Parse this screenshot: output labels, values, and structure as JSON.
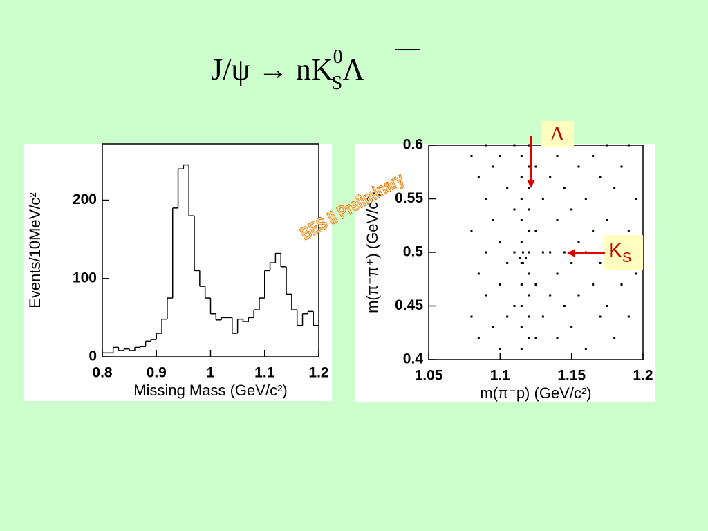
{
  "title": {
    "main": "J/ψ → nK",
    "sub": "S",
    "sup": "0",
    "tail": "Λ"
  },
  "watermark": "BES II Preliminary",
  "annotations": [
    {
      "main": "Λ"
    },
    {
      "main": "K",
      "sub": "S"
    }
  ],
  "chart_data": [
    {
      "type": "histogram",
      "xlabel": "Missing Mass (GeV/c²)",
      "ylabel": "Events/10MeV/c²",
      "bins": [
        0.8,
        0.81,
        0.82,
        0.83,
        0.84,
        0.85,
        0.86,
        0.87,
        0.88,
        0.89,
        0.9,
        0.91,
        0.92,
        0.93,
        0.94,
        0.95,
        0.96,
        0.97,
        0.98,
        0.99,
        1.0,
        1.01,
        1.02,
        1.03,
        1.04,
        1.05,
        1.06,
        1.07,
        1.08,
        1.09,
        1.1,
        1.11,
        1.12,
        1.13,
        1.14,
        1.15,
        1.16,
        1.17,
        1.18,
        1.19,
        1.2
      ],
      "values": [
        5,
        5,
        12,
        8,
        10,
        8,
        12,
        13,
        20,
        22,
        30,
        48,
        75,
        190,
        240,
        245,
        180,
        110,
        90,
        75,
        55,
        47,
        50,
        50,
        30,
        48,
        45,
        50,
        60,
        75,
        110,
        120,
        132,
        115,
        80,
        60,
        40,
        55,
        58,
        40
      ],
      "color": "#000000",
      "xlim": [
        0.8,
        1.2
      ],
      "xticks": [
        0.8,
        0.9,
        1,
        1.1,
        1.2
      ],
      "ylim": [
        0,
        272
      ],
      "yticks": [
        0,
        100,
        200
      ]
    },
    {
      "type": "scatter",
      "xlabel": "m(π⁻p)  (GeV/c²)",
      "ylabel": "m(π⁻π⁺)  (GeV/c²)",
      "x": [
        1.115,
        1.115,
        1.115,
        1.115,
        1.115,
        1.115,
        1.115,
        1.115,
        1.115,
        1.115,
        1.12,
        1.12,
        1.12,
        1.12,
        1.12,
        1.12,
        1.12,
        1.12,
        1.12,
        1.12,
        1.114,
        1.118,
        1.116,
        1.116,
        1.08,
        1.08,
        1.08,
        1.085,
        1.085,
        1.085,
        1.09,
        1.09,
        1.09,
        1.09,
        1.095,
        1.095,
        1.095,
        1.1,
        1.1,
        1.1,
        1.1,
        1.105,
        1.105,
        1.105,
        1.11,
        1.11,
        1.11,
        1.11,
        1.125,
        1.125,
        1.125,
        1.125,
        1.13,
        1.13,
        1.13,
        1.13,
        1.135,
        1.135,
        1.135,
        1.14,
        1.14,
        1.14,
        1.14,
        1.145,
        1.145,
        1.145,
        1.15,
        1.15,
        1.15,
        1.15,
        1.155,
        1.155,
        1.155,
        1.16,
        1.16,
        1.16,
        1.165,
        1.165,
        1.165,
        1.17,
        1.17,
        1.17,
        1.175,
        1.175,
        1.175,
        1.18,
        1.18,
        1.18,
        1.185,
        1.185,
        1.19,
        1.19,
        1.19,
        1.195,
        1.195
      ],
      "y": [
        0.41,
        0.43,
        0.45,
        0.47,
        0.49,
        0.51,
        0.53,
        0.55,
        0.57,
        0.59,
        0.42,
        0.44,
        0.46,
        0.48,
        0.5,
        0.52,
        0.54,
        0.56,
        0.58,
        0.6,
        0.495,
        0.495,
        0.5,
        0.49,
        0.59,
        0.52,
        0.44,
        0.57,
        0.48,
        0.42,
        0.6,
        0.55,
        0.5,
        0.46,
        0.58,
        0.53,
        0.43,
        0.59,
        0.51,
        0.47,
        0.41,
        0.56,
        0.49,
        0.44,
        0.6,
        0.54,
        0.5,
        0.45,
        0.58,
        0.52,
        0.47,
        0.42,
        0.6,
        0.55,
        0.5,
        0.44,
        0.57,
        0.5,
        0.46,
        0.59,
        0.53,
        0.48,
        0.42,
        0.56,
        0.5,
        0.45,
        0.6,
        0.54,
        0.49,
        0.43,
        0.58,
        0.51,
        0.46,
        0.55,
        0.5,
        0.41,
        0.59,
        0.52,
        0.47,
        0.57,
        0.49,
        0.44,
        0.6,
        0.53,
        0.45,
        0.56,
        0.5,
        0.42,
        0.58,
        0.47,
        0.6,
        0.52,
        0.44,
        0.55,
        0.48
      ],
      "color": "#000000",
      "xlim": [
        1.05,
        1.2
      ],
      "xticks": [
        1.05,
        1.1,
        1.15,
        1.2
      ],
      "ylim": [
        0.4,
        0.6
      ],
      "yticks": [
        0.4,
        0.45,
        0.5,
        0.55,
        0.6
      ]
    }
  ]
}
